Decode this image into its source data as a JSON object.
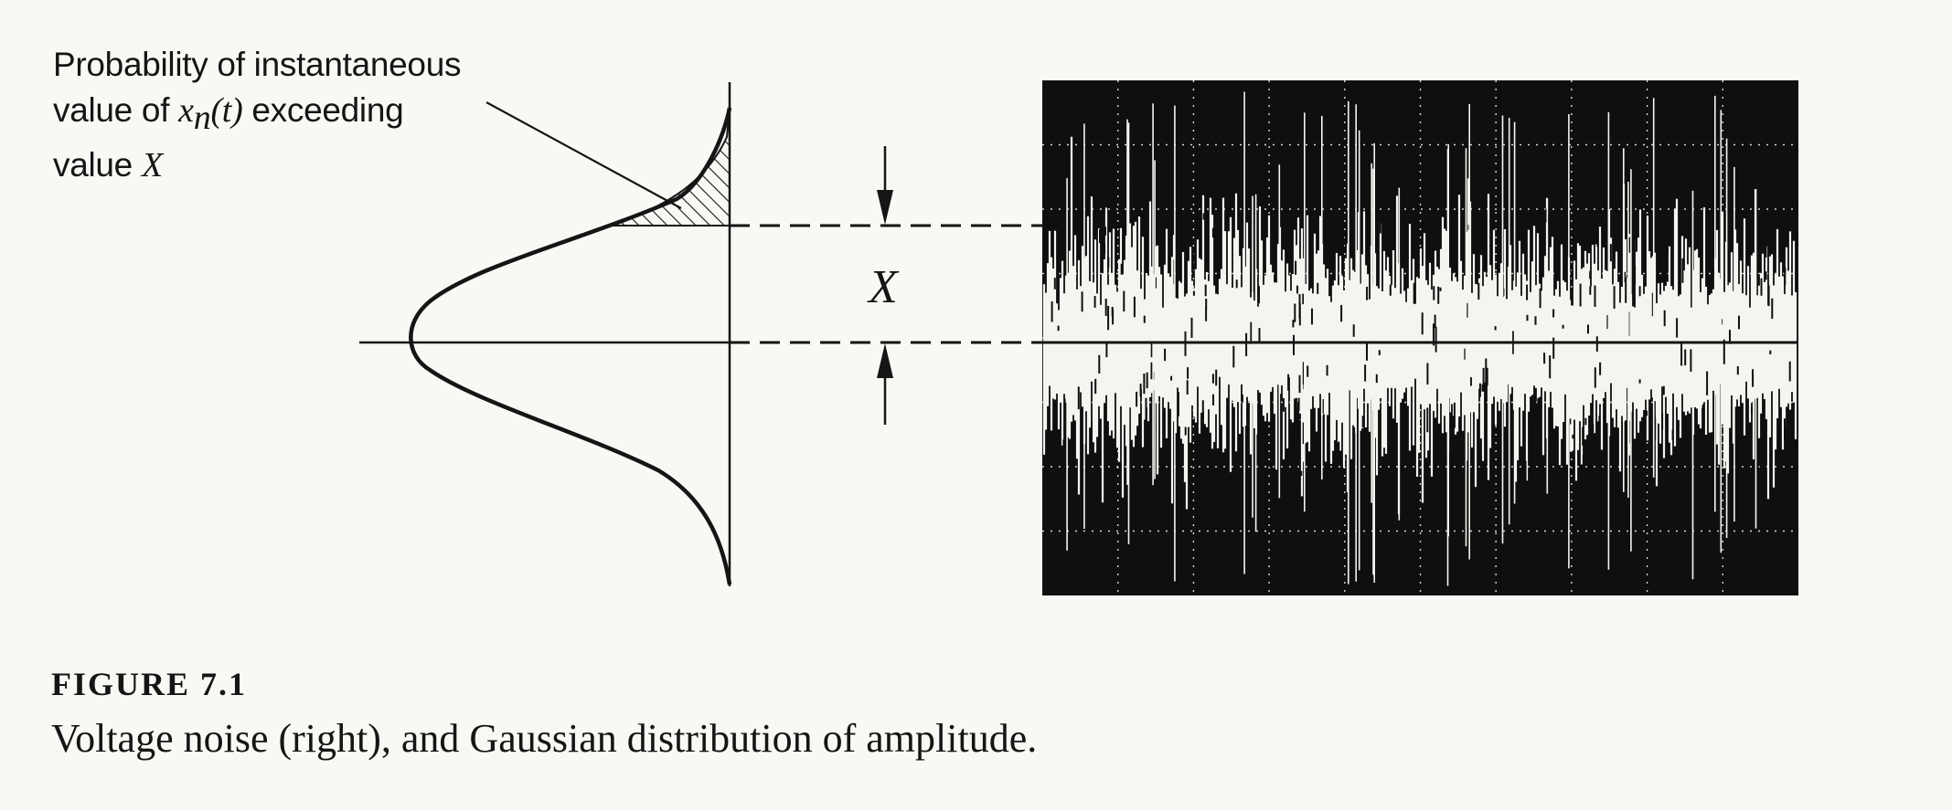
{
  "annotation": {
    "line1": "Probability of instantaneous",
    "line2_prefix": "value of ",
    "symbol_x": "x",
    "symbol_sub": "n",
    "symbol_arg": "(t)",
    "line2_suffix": "  exceeding",
    "line3_prefix": "value ",
    "line3_var": "X"
  },
  "threshold_label": "X",
  "figure": {
    "number": "FIGURE 7.1",
    "caption": "Voltage noise (right), and Gaussian distribution of amplitude."
  }
}
